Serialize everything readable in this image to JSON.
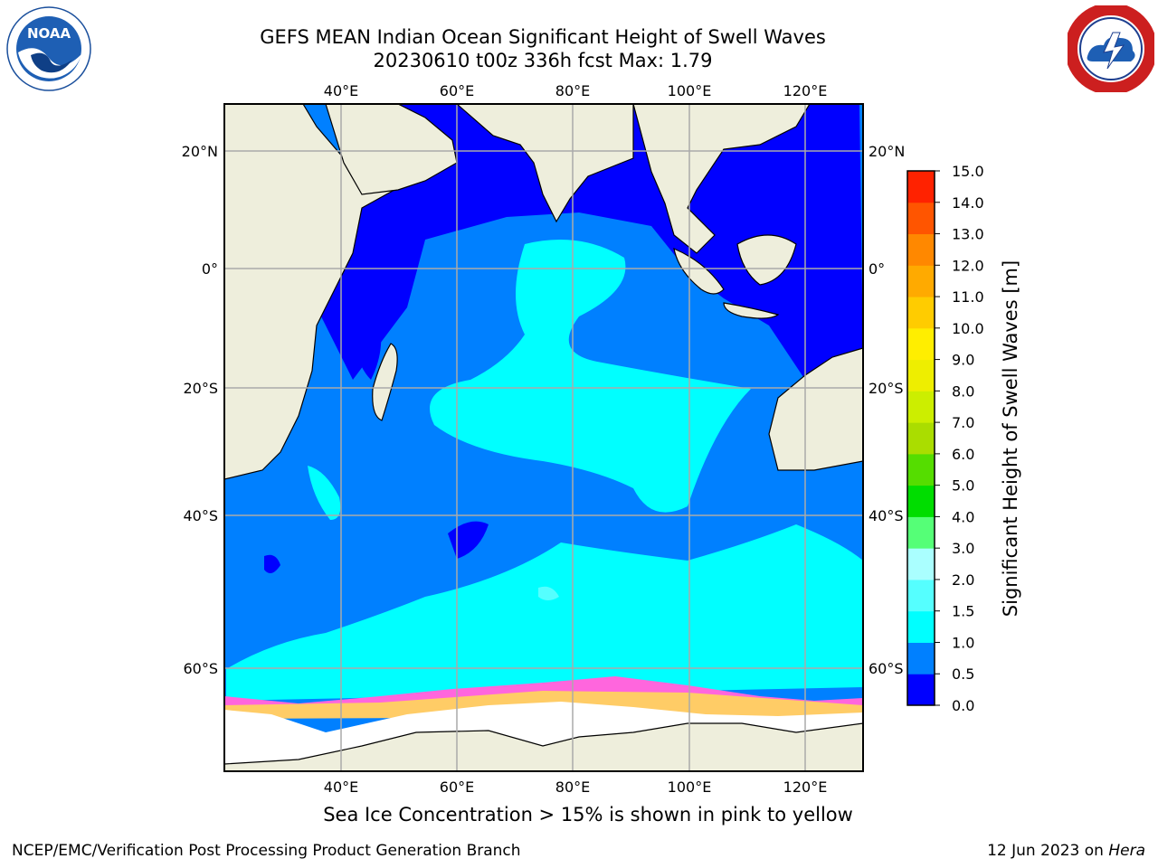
{
  "header": {
    "title_line1": "GEFS MEAN Indian Ocean Significant Height of Swell Waves",
    "title_line2": "20230610 t00z 336h fcst   Max: 1.79"
  },
  "logos": {
    "left": "noaa-logo",
    "right": "nws-logo"
  },
  "map": {
    "projection": "mercator",
    "lon_range": [
      20,
      130
    ],
    "lat_range": [
      -70,
      27
    ],
    "lon_ticks": [
      "40°E",
      "60°E",
      "80°E",
      "100°E",
      "120°E"
    ],
    "lat_ticks": [
      "20°N",
      "0°",
      "20°S",
      "40°S",
      "60°S"
    ],
    "grid": true,
    "colors": {
      "land": "#eeeedc",
      "sea_ice": "#ffffff",
      "grid": "#aaaaaa"
    }
  },
  "colorbar": {
    "label": "Significant Height of Swell Waves [m]",
    "tick_labels": [
      "0.0",
      "0.5",
      "1.0",
      "1.5",
      "2.0",
      "3.0",
      "4.0",
      "5.0",
      "6.0",
      "7.0",
      "8.0",
      "9.0",
      "10.0",
      "11.0",
      "12.0",
      "13.0",
      "14.0",
      "15.0"
    ],
    "colors": [
      "#0000ff",
      "#0080ff",
      "#00ffff",
      "#55ffff",
      "#aaffff",
      "#55ff77",
      "#00dd00",
      "#55dd00",
      "#aadd00",
      "#ccee00",
      "#eeee00",
      "#ffee00",
      "#ffcc00",
      "#ffaa00",
      "#ff8800",
      "#ff5500",
      "#ff2200",
      "#ff0000"
    ]
  },
  "footer": {
    "ice_note": "Sea Ice Concentration > 15% is shown in pink to yellow",
    "left": "NCEP/EMC/Verification Post Processing Product Generation Branch",
    "date": "12 Jun 2023 on ",
    "machine": "Hera"
  }
}
